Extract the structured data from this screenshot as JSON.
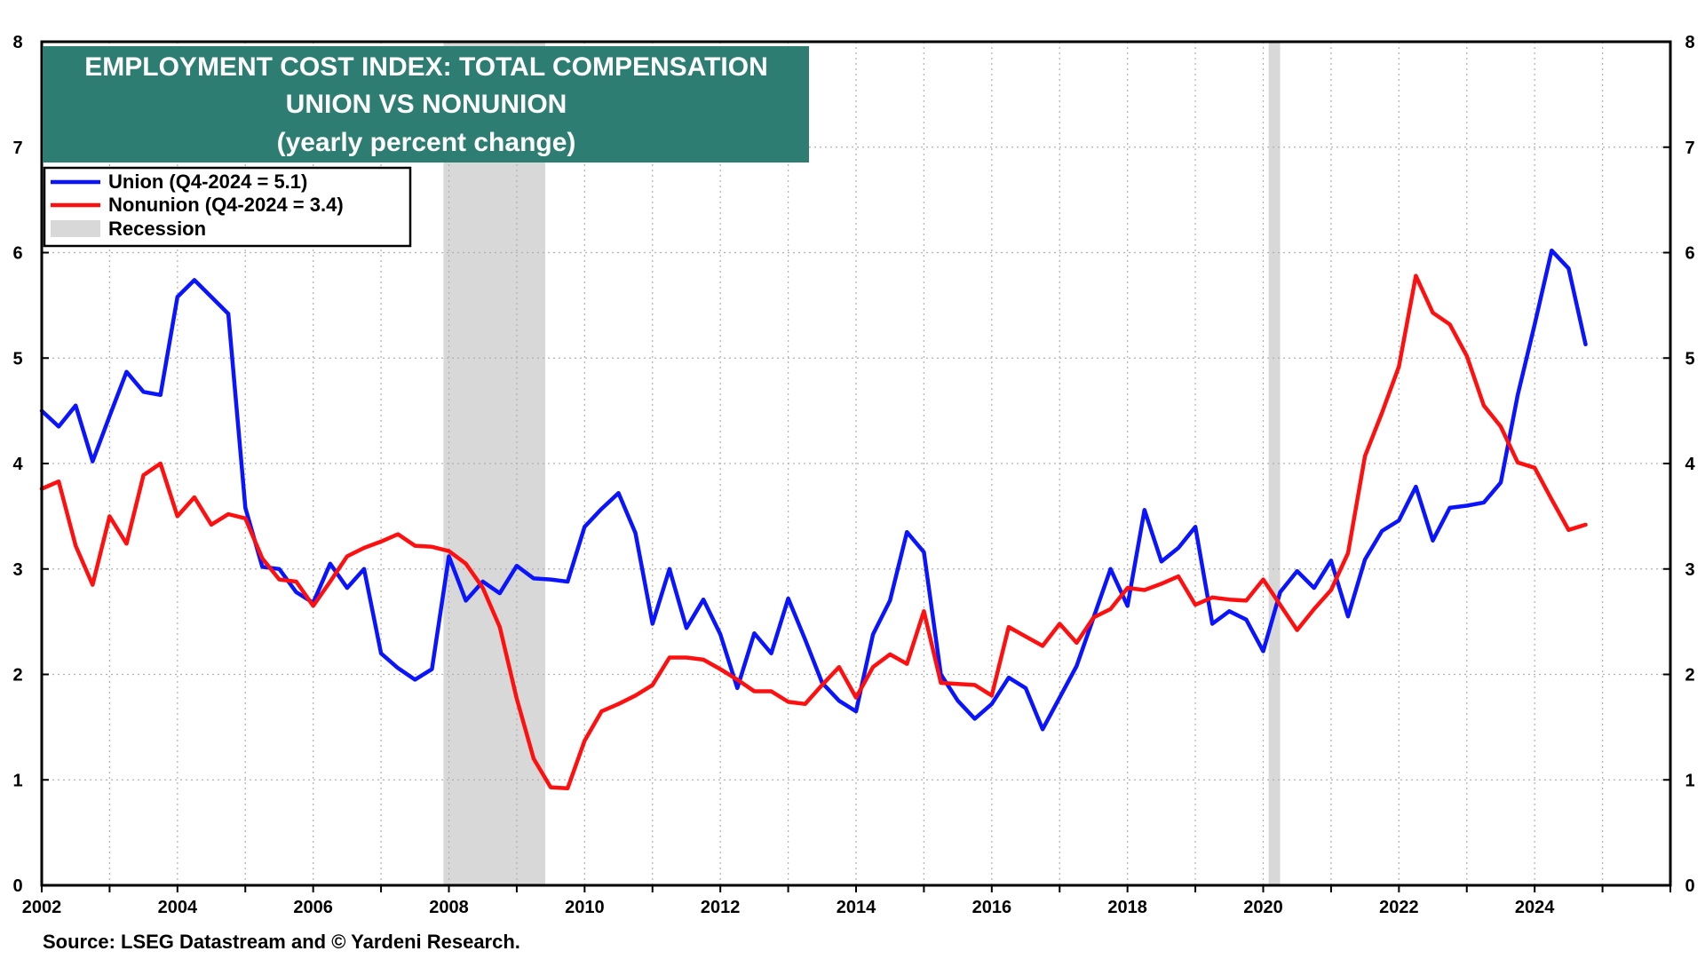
{
  "chart_data": {
    "type": "line",
    "title": [
      "EMPLOYMENT COST INDEX: TOTAL COMPENSATION",
      "UNION VS NONUNION",
      "(yearly percent change)"
    ],
    "title_bg": "#2e7d72",
    "xlim": [
      2002,
      2026
    ],
    "ylim": [
      0,
      8
    ],
    "x_ticks": [
      "2002",
      "2004",
      "2006",
      "2008",
      "2010",
      "2012",
      "2014",
      "2016",
      "2018",
      "2020",
      "2022",
      "2024"
    ],
    "y_ticks": [
      "0",
      "1",
      "2",
      "3",
      "4",
      "5",
      "6",
      "7",
      "8"
    ],
    "grid": true,
    "legend": [
      {
        "label": "Union (Q4-2024 = 5.1)",
        "color": "#0a14ff",
        "kind": "line"
      },
      {
        "label": "Nonunion  (Q4-2024 = 3.4)",
        "color": "#ff1010",
        "kind": "line"
      },
      {
        "label": "Recession",
        "color": "#d8d8d8",
        "kind": "box"
      }
    ],
    "recessions": [
      [
        2007.92,
        2009.42
      ],
      [
        2020.08,
        2020.25
      ]
    ],
    "series": [
      {
        "name": "Union",
        "color": "#0a14ff",
        "x": [
          2002.0,
          2002.25,
          2002.5,
          2002.75,
          2003.0,
          2003.25,
          2003.5,
          2003.75,
          2004.0,
          2004.25,
          2004.5,
          2004.75,
          2005.0,
          2005.25,
          2005.5,
          2005.75,
          2006.0,
          2006.25,
          2006.5,
          2006.75,
          2007.0,
          2007.25,
          2007.5,
          2007.75,
          2008.0,
          2008.25,
          2008.5,
          2008.75,
          2009.0,
          2009.25,
          2009.5,
          2009.75,
          2010.0,
          2010.25,
          2010.5,
          2010.75,
          2011.0,
          2011.25,
          2011.5,
          2011.75,
          2012.0,
          2012.25,
          2012.5,
          2012.75,
          2013.0,
          2013.25,
          2013.5,
          2013.75,
          2014.0,
          2014.25,
          2014.5,
          2014.75,
          2015.0,
          2015.25,
          2015.5,
          2015.75,
          2016.0,
          2016.25,
          2016.5,
          2016.75,
          2017.0,
          2017.25,
          2017.5,
          2017.75,
          2018.0,
          2018.25,
          2018.5,
          2018.75,
          2019.0,
          2019.25,
          2019.5,
          2019.75,
          2020.0,
          2020.25,
          2020.5,
          2020.75,
          2021.0,
          2021.25,
          2021.5,
          2021.75,
          2022.0,
          2022.25,
          2022.5,
          2022.75,
          2023.0,
          2023.25,
          2023.5,
          2023.75,
          2024.0,
          2024.25,
          2024.5,
          2024.75
        ],
        "values": [
          4.5,
          4.35,
          4.55,
          4.02,
          4.45,
          4.87,
          4.68,
          4.65,
          5.58,
          5.74,
          5.58,
          5.42,
          3.58,
          3.02,
          3.0,
          2.78,
          2.68,
          3.05,
          2.82,
          3.0,
          2.2,
          2.06,
          1.95,
          2.05,
          3.12,
          2.7,
          2.88,
          2.77,
          3.03,
          2.91,
          2.9,
          2.88,
          3.4,
          3.57,
          3.72,
          3.34,
          2.48,
          3.0,
          2.44,
          2.71,
          2.38,
          1.87,
          2.39,
          2.2,
          2.72,
          2.33,
          1.92,
          1.75,
          1.65,
          2.38,
          2.7,
          3.35,
          3.16,
          2.0,
          1.75,
          1.58,
          1.72,
          1.97,
          1.87,
          1.48,
          1.78,
          2.08,
          2.54,
          3.0,
          2.65,
          3.56,
          3.07,
          3.2,
          3.4,
          2.48,
          2.6,
          2.52,
          2.22,
          2.78,
          2.98,
          2.82,
          3.08,
          2.55,
          3.09,
          3.36,
          3.46,
          3.78,
          3.27,
          3.58,
          3.6,
          3.63,
          3.82,
          4.65,
          5.32,
          6.02,
          5.85,
          5.13
        ]
      },
      {
        "name": "Nonunion",
        "color": "#ff1010",
        "x": [
          2002.0,
          2002.25,
          2002.5,
          2002.75,
          2003.0,
          2003.25,
          2003.5,
          2003.75,
          2004.0,
          2004.25,
          2004.5,
          2004.75,
          2005.0,
          2005.25,
          2005.5,
          2005.75,
          2006.0,
          2006.25,
          2006.5,
          2006.75,
          2007.0,
          2007.25,
          2007.5,
          2007.75,
          2008.0,
          2008.25,
          2008.5,
          2008.75,
          2009.0,
          2009.25,
          2009.5,
          2009.75,
          2010.0,
          2010.25,
          2010.5,
          2010.75,
          2011.0,
          2011.25,
          2011.5,
          2011.75,
          2012.0,
          2012.25,
          2012.5,
          2012.75,
          2013.0,
          2013.25,
          2013.5,
          2013.75,
          2014.0,
          2014.25,
          2014.5,
          2014.75,
          2015.0,
          2015.25,
          2015.5,
          2015.75,
          2016.0,
          2016.25,
          2016.5,
          2016.75,
          2017.0,
          2017.25,
          2017.5,
          2017.75,
          2018.0,
          2018.25,
          2018.5,
          2018.75,
          2019.0,
          2019.25,
          2019.5,
          2019.75,
          2020.0,
          2020.25,
          2020.5,
          2020.75,
          2021.0,
          2021.25,
          2021.5,
          2021.75,
          2022.0,
          2022.25,
          2022.5,
          2022.75,
          2023.0,
          2023.25,
          2023.5,
          2023.75,
          2024.0,
          2024.25,
          2024.5,
          2024.75
        ],
        "values": [
          3.76,
          3.83,
          3.22,
          2.85,
          3.5,
          3.24,
          3.89,
          4.0,
          3.5,
          3.68,
          3.42,
          3.52,
          3.48,
          3.1,
          2.9,
          2.88,
          2.65,
          2.88,
          3.12,
          3.2,
          3.26,
          3.33,
          3.22,
          3.21,
          3.17,
          3.05,
          2.82,
          2.45,
          1.77,
          1.2,
          0.93,
          0.92,
          1.37,
          1.65,
          1.72,
          1.8,
          1.9,
          2.16,
          2.16,
          2.14,
          2.05,
          1.95,
          1.84,
          1.84,
          1.74,
          1.72,
          1.9,
          2.07,
          1.78,
          2.07,
          2.19,
          2.1,
          2.6,
          1.92,
          1.91,
          1.9,
          1.8,
          2.45,
          2.36,
          2.27,
          2.48,
          2.3,
          2.54,
          2.62,
          2.82,
          2.8,
          2.86,
          2.93,
          2.66,
          2.73,
          2.71,
          2.7,
          2.9,
          2.66,
          2.42,
          2.62,
          2.8,
          3.15,
          4.07,
          4.48,
          4.92,
          5.78,
          5.43,
          5.32,
          5.02,
          4.55,
          4.35,
          4.01,
          3.96,
          3.66,
          3.37,
          3.42
        ]
      }
    ],
    "source": "Source: LSEG Datastream and © Yardeni Research."
  }
}
